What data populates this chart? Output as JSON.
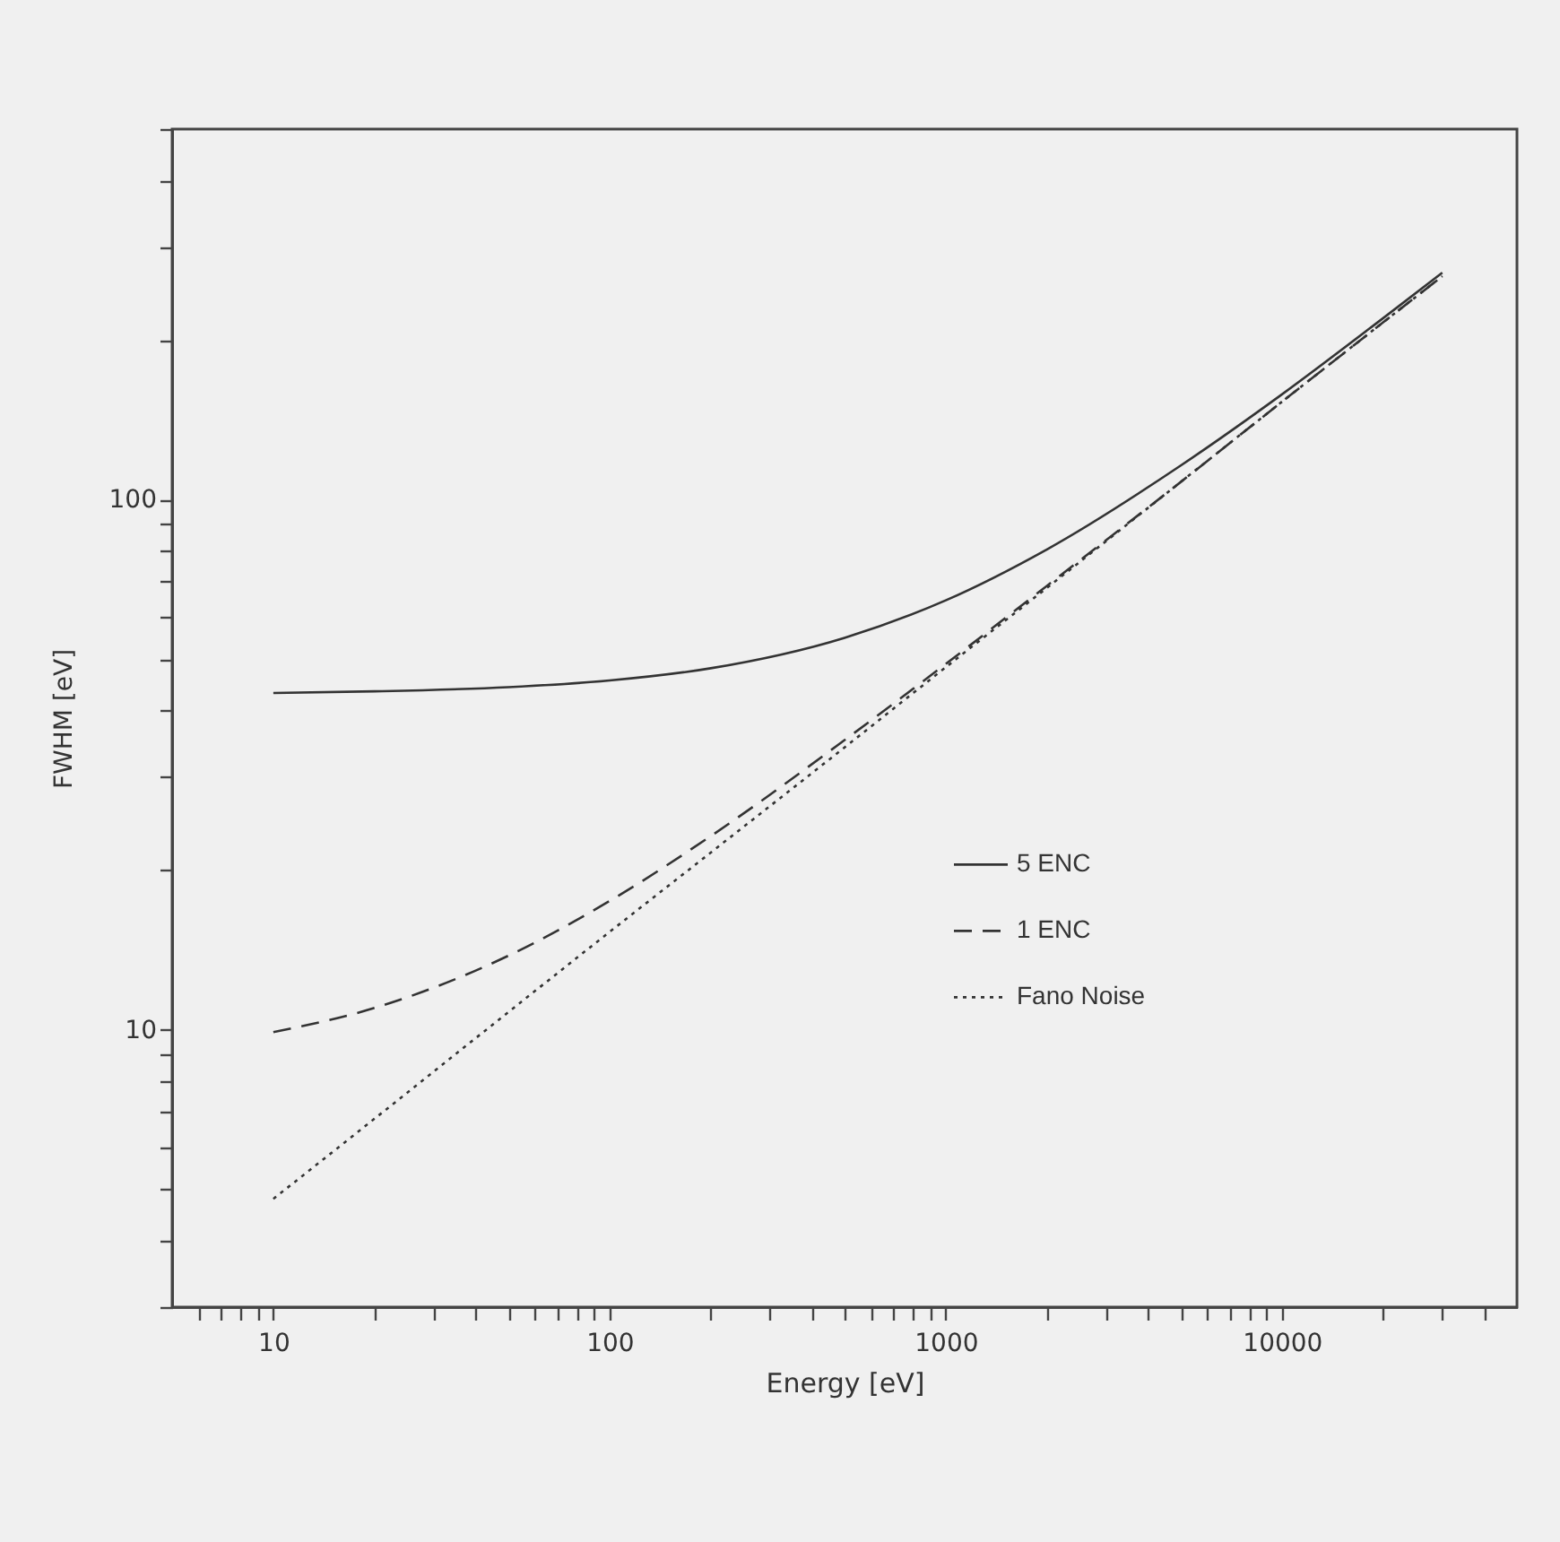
{
  "chart_data": {
    "type": "line",
    "xlabel": "Energy [eV]",
    "ylabel": "FWHM [eV]",
    "log": "xy",
    "grid": false,
    "legend": "right",
    "marker": "none",
    "xlim": [
      5,
      50000
    ],
    "ylim": [
      3,
      500
    ],
    "xticks": [
      {
        "value": 6,
        "label": null
      },
      {
        "value": 7,
        "label": null
      },
      {
        "value": 8,
        "label": null
      },
      {
        "value": 9,
        "label": null
      },
      10,
      {
        "value": 20,
        "label": null
      },
      {
        "value": 30,
        "label": null
      },
      {
        "value": 40,
        "label": null
      },
      {
        "value": 50,
        "label": null
      },
      {
        "value": 60,
        "label": null
      },
      {
        "value": 70,
        "label": null
      },
      {
        "value": 80,
        "label": null
      },
      {
        "value": 90,
        "label": null
      },
      100,
      {
        "value": 200,
        "label": null
      },
      {
        "value": 300,
        "label": null
      },
      {
        "value": 400,
        "label": null
      },
      {
        "value": 500,
        "label": null
      },
      {
        "value": 600,
        "label": null
      },
      {
        "value": 700,
        "label": null
      },
      {
        "value": 800,
        "label": null
      },
      {
        "value": 900,
        "label": null
      },
      1000,
      {
        "value": 2000,
        "label": null
      },
      {
        "value": 3000,
        "label": null
      },
      {
        "value": 4000,
        "label": null
      },
      {
        "value": 5000,
        "label": null
      },
      {
        "value": 6000,
        "label": null
      },
      {
        "value": 7000,
        "label": null
      },
      {
        "value": 8000,
        "label": null
      },
      {
        "value": 9000,
        "label": null
      },
      10000,
      {
        "value": 20000,
        "label": null
      },
      {
        "value": 30000,
        "label": null
      },
      {
        "value": 40000,
        "label": null
      }
    ],
    "yticks": [
      {
        "value": 3,
        "label": null
      },
      {
        "value": 4,
        "label": null
      },
      {
        "value": 5,
        "label": null
      },
      {
        "value": 6,
        "label": null
      },
      {
        "value": 7,
        "label": null
      },
      {
        "value": 8,
        "label": null
      },
      {
        "value": 9,
        "label": null
      },
      10,
      {
        "value": 20,
        "label": null
      },
      {
        "value": 30,
        "label": null
      },
      {
        "value": 40,
        "label": null
      },
      {
        "value": 50,
        "label": null
      },
      {
        "value": 60,
        "label": null
      },
      {
        "value": 70,
        "label": null
      },
      {
        "value": 80,
        "label": null
      },
      {
        "value": 90,
        "label": null
      },
      100,
      {
        "value": 200,
        "label": null
      },
      {
        "value": 300,
        "label": null
      },
      {
        "value": 400,
        "label": null
      },
      {
        "value": 500,
        "label": null
      }
    ],
    "x": [
      10,
      20,
      50,
      100,
      200,
      500,
      1000,
      2000,
      5000,
      10000,
      20000,
      30000
    ],
    "series": [
      {
        "name": "5 ENC",
        "color": "#333333",
        "line_style": "solid",
        "values": [
          43.2,
          43.5,
          44.3,
          45.6,
          48.1,
          54.9,
          64.6,
          80.6,
          116,
          158,
          220,
          268
        ]
      },
      {
        "name": "1 ENC",
        "color": "#333333",
        "line_style": "dashed",
        "values": [
          9.9,
          11,
          13.8,
          17.5,
          23.2,
          35.2,
          49,
          68.8,
          108,
          153,
          216,
          264
        ]
      },
      {
        "name": "Fano Noise",
        "color": "#333333",
        "line_style": "dotted",
        "values": [
          4.8,
          6.8,
          10.8,
          15.3,
          21.6,
          34.1,
          48.3,
          68.2,
          108,
          153,
          216,
          264
        ]
      }
    ]
  }
}
